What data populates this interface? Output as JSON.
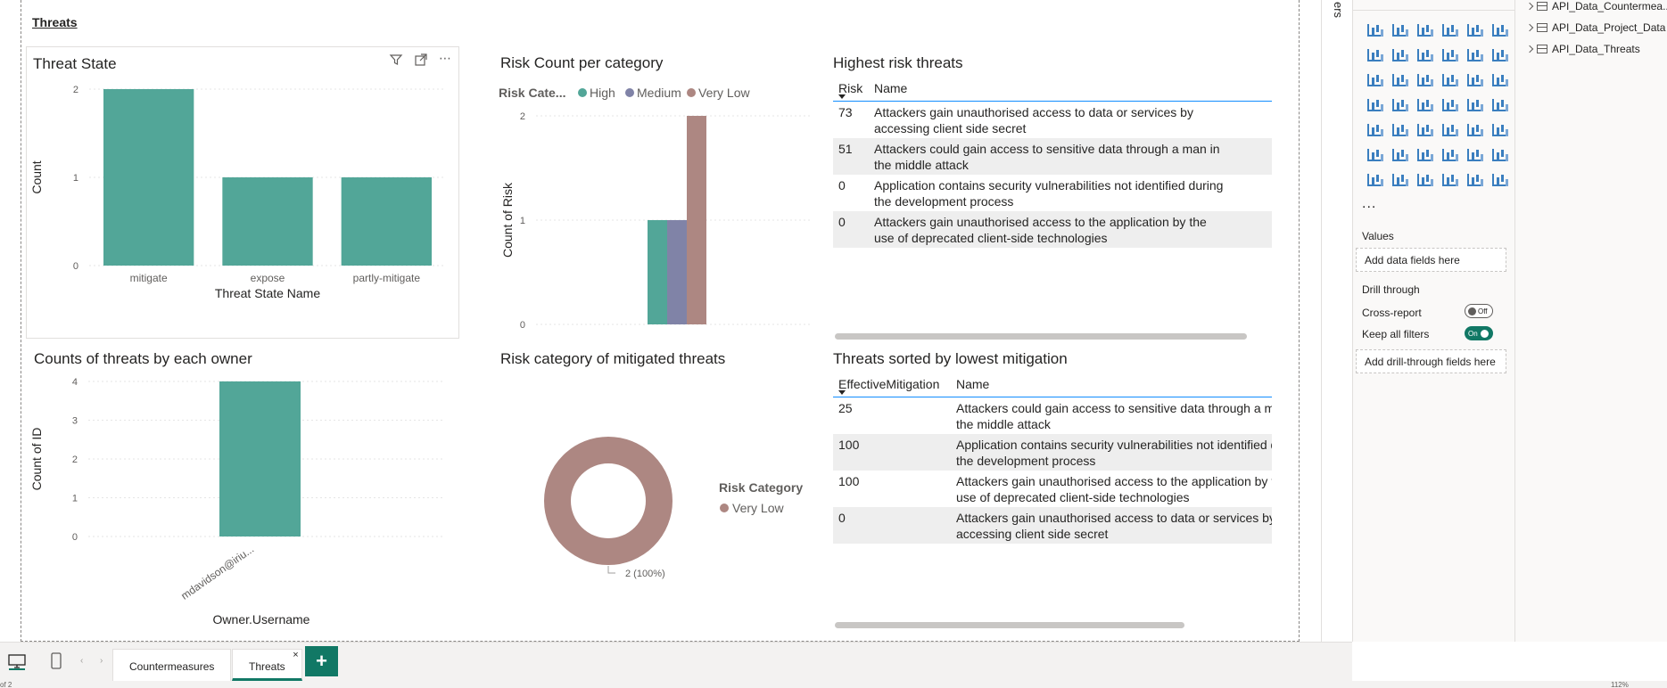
{
  "page": {
    "title": "Threats"
  },
  "visuals": {
    "threat_state": {
      "title": "Threat State",
      "header_icons": [
        "filter-icon",
        "focus-mode-icon",
        "more-options-icon"
      ],
      "more_glyph": "⋯",
      "chart_data": {
        "type": "bar",
        "title": "Threat State",
        "categories": [
          "mitigate",
          "expose",
          "partly-mitigate"
        ],
        "values": [
          2,
          1,
          1
        ],
        "xlabel": "Threat State Name",
        "ylabel": "Count",
        "ylim": [
          0,
          2
        ],
        "yticks": [
          "0",
          "1",
          "2"
        ],
        "grid": true,
        "color": "#52a698"
      }
    },
    "risk_count": {
      "title": "Risk Count per category",
      "legend_title": "Risk Cate...",
      "chart_data": {
        "type": "bar",
        "title": "Risk Count per category",
        "series": [
          {
            "name": "High",
            "values": [
              1
            ],
            "color": "#52a698"
          },
          {
            "name": "Medium",
            "values": [
              1
            ],
            "color": "#8083a7"
          },
          {
            "name": "Very Low",
            "values": [
              2
            ],
            "color": "#ad8782"
          }
        ],
        "ylabel": "Count of Risk",
        "ylim": [
          0,
          2
        ],
        "yticks": [
          "0",
          "1",
          "2"
        ],
        "legend": "top-left",
        "grid": true
      }
    },
    "highest_risk": {
      "title": "Highest risk threats",
      "columns": [
        "Risk",
        "Name"
      ],
      "rows": [
        {
          "risk": "73",
          "name": "Attackers gain unauthorised access to data or services by accessing client side secret"
        },
        {
          "risk": "51",
          "name": "Attackers could gain access to sensitive data through a man in the middle attack"
        },
        {
          "risk": "0",
          "name": "Application contains security vulnerabilities not identified during the development process"
        },
        {
          "risk": "0",
          "name": "Attackers gain unauthorised access to the application by the use of deprecated client-side technologies"
        }
      ]
    },
    "owner_counts": {
      "title": "Counts of threats by each owner",
      "chart_data": {
        "type": "bar",
        "title": "Counts of threats by each owner",
        "categories": [
          "mdavidson@iriu..."
        ],
        "values": [
          4
        ],
        "xlabel": "Owner.Username",
        "ylabel": "Count of ID",
        "ylim": [
          0,
          4
        ],
        "yticks": [
          "0",
          "1",
          "2",
          "3",
          "4"
        ],
        "grid": true,
        "color": "#52a698"
      }
    },
    "mitigated_category": {
      "title": "Risk category of mitigated threats",
      "legend_title": "Risk Category",
      "chart_data": {
        "type": "pie",
        "title": "Risk category of mitigated threats",
        "categories": [
          "Very Low"
        ],
        "values": [
          2
        ],
        "data_labels": [
          "2 (100%)"
        ],
        "legend": "right",
        "colors": [
          "#ad8782"
        ]
      }
    },
    "lowest_mitigation": {
      "title": "Threats sorted by lowest mitigation",
      "columns": [
        "EffectiveMitigation",
        "Name"
      ],
      "rows": [
        {
          "mitigation": "25",
          "name": "Attackers could gain access to sensitive data through a man in the middle attack"
        },
        {
          "mitigation": "100",
          "name": "Application contains security vulnerabilities not identified during the development process"
        },
        {
          "mitigation": "100",
          "name": "Attackers gain unauthorised access to the application by the use of deprecated client-side technologies"
        },
        {
          "mitigation": "0",
          "name": "Attackers gain unauthorised access to data or services by accessing client side secret"
        }
      ]
    }
  },
  "filters_pane": {
    "label": "ers"
  },
  "viz_pane": {
    "more": "...",
    "values_label": "Values",
    "values_placeholder": "Add data fields here",
    "drill_through_label": "Drill through",
    "cross_report_label": "Cross-report",
    "cross_report_state": "Off",
    "keep_filters_label": "Keep all filters",
    "keep_filters_state": "On",
    "drill_placeholder": "Add drill-through fields here"
  },
  "data_pane": {
    "tables": [
      "API_Data_Countermea...",
      "API_Data_Project_Data",
      "API_Data_Threats"
    ]
  },
  "tabs": {
    "items": [
      {
        "label": "Countermeasures"
      },
      {
        "label": "Threats"
      }
    ],
    "close_glyph": "×",
    "add_glyph": "+"
  },
  "status": {
    "page_count": "of 2",
    "zoom": "112%"
  }
}
